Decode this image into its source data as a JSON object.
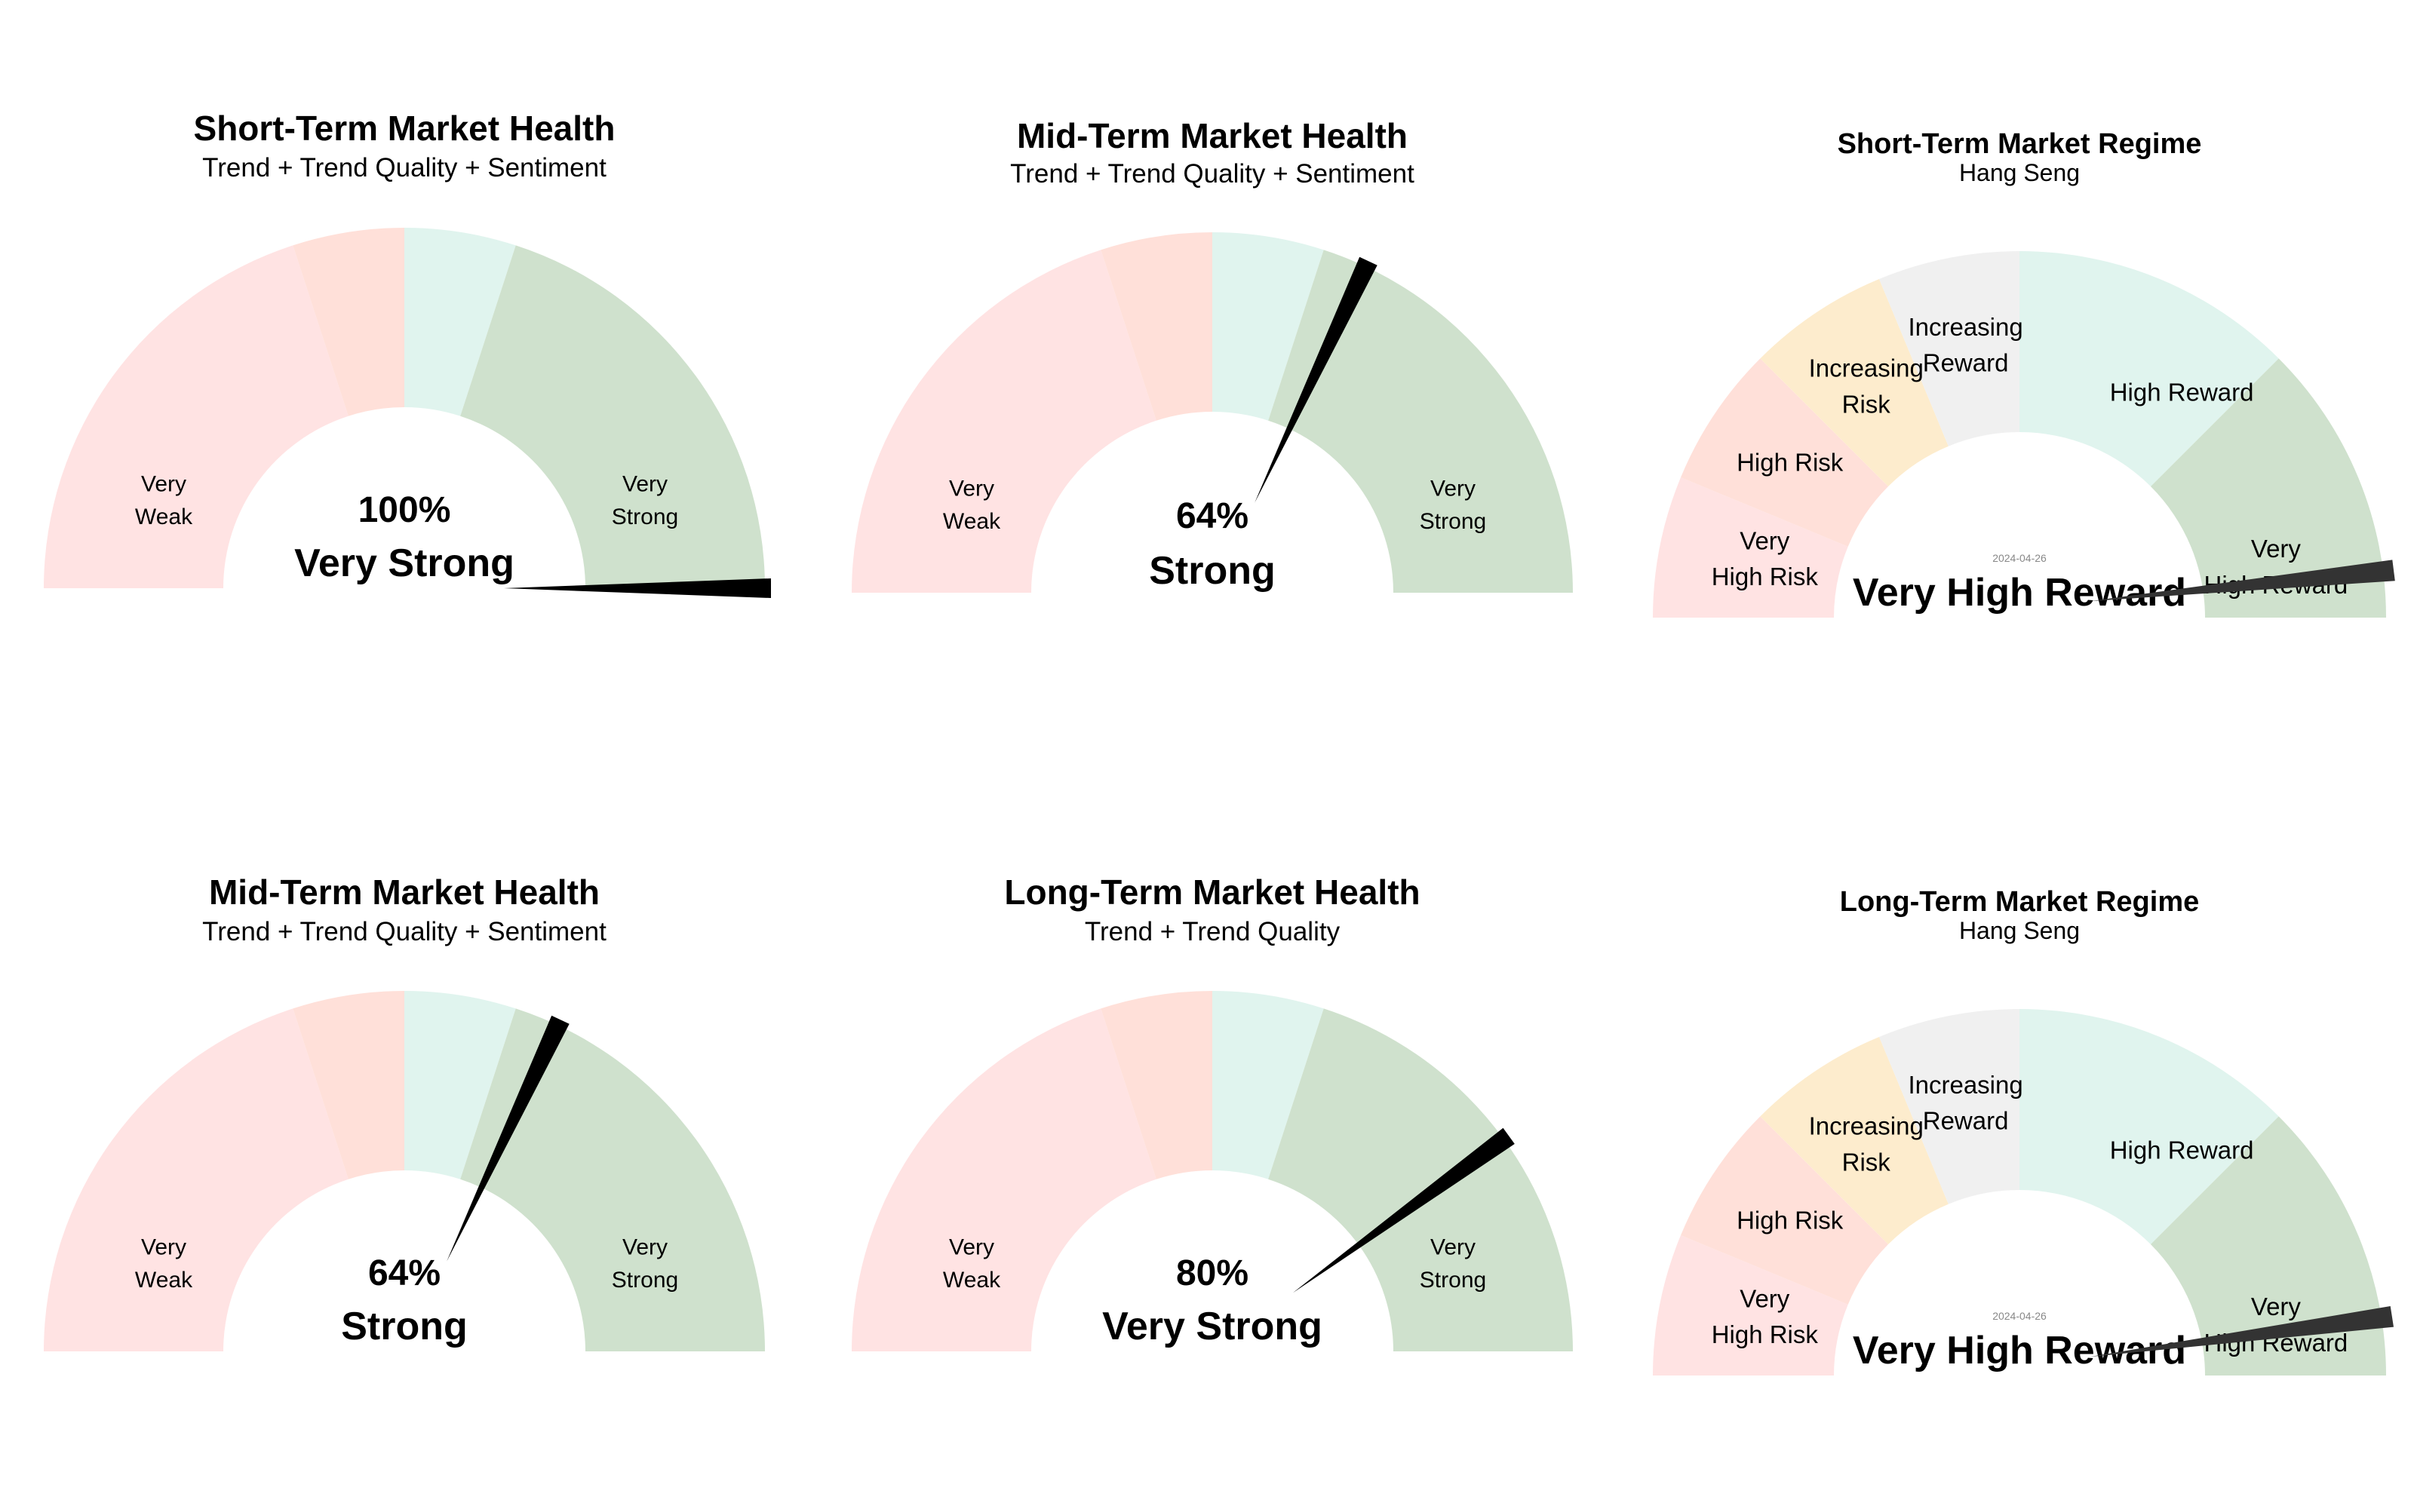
{
  "colors": {
    "very_weak": "#ffe3e3",
    "weak": "#ffe0d9",
    "strong": "#e0f4ee",
    "very_strong": "#cfe1cd",
    "increasing_risk": "#fdeccd",
    "increasing_reward": "#f0f0f0",
    "needle": "#000000",
    "regime_needle": "#333333",
    "text": "#000000",
    "date_text": "#888888"
  },
  "chart_data": [
    {
      "type": "gauge",
      "title": "Short-Term Market Health",
      "subtitle": "Trend + Trend Quality + Sentiment",
      "value_pct": 100,
      "value_label": "100%",
      "state_label": "Very Strong",
      "segments": [
        {
          "start": 0,
          "end": 40,
          "color_key": "very_weak",
          "label_lines": [
            "Very",
            "Weak"
          ]
        },
        {
          "start": 40,
          "end": 50,
          "color_key": "weak",
          "label_lines": []
        },
        {
          "start": 50,
          "end": 60,
          "color_key": "strong",
          "label_lines": []
        },
        {
          "start": 60,
          "end": 100,
          "color_key": "very_strong",
          "label_lines": [
            "Very",
            "Strong"
          ]
        }
      ]
    },
    {
      "type": "gauge",
      "title": "Mid-Term Market Health",
      "subtitle": "Trend + Trend Quality + Sentiment",
      "value_pct": 64,
      "value_label": "64%",
      "state_label": "Strong",
      "segments": [
        {
          "start": 0,
          "end": 40,
          "color_key": "very_weak",
          "label_lines": [
            "Very",
            "Weak"
          ]
        },
        {
          "start": 40,
          "end": 50,
          "color_key": "weak",
          "label_lines": []
        },
        {
          "start": 50,
          "end": 60,
          "color_key": "strong",
          "label_lines": []
        },
        {
          "start": 60,
          "end": 100,
          "color_key": "very_strong",
          "label_lines": [
            "Very",
            "Strong"
          ]
        }
      ]
    },
    {
      "type": "regime_gauge",
      "title": "Short-Term Market Regime",
      "subtitle": "Hang Seng",
      "date": "2024-04-26",
      "value_pct": 96,
      "state_label": "Very High Reward",
      "segments": [
        {
          "start": 0,
          "end": 12.5,
          "color_key": "very_weak",
          "label_lines": [
            "Very",
            "High Risk"
          ]
        },
        {
          "start": 12.5,
          "end": 25,
          "color_key": "weak",
          "label_lines": [
            "High Risk"
          ]
        },
        {
          "start": 25,
          "end": 37.5,
          "color_key": "increasing_risk",
          "label_lines": [
            "Increasing",
            "Risk"
          ]
        },
        {
          "start": 37.5,
          "end": 50,
          "color_key": "increasing_reward",
          "label_lines": [
            "Increasing",
            "Reward"
          ]
        },
        {
          "start": 50,
          "end": 75,
          "color_key": "strong",
          "label_lines": [
            "High Reward"
          ]
        },
        {
          "start": 75,
          "end": 100,
          "color_key": "very_strong",
          "label_lines": [
            "Very",
            "High Reward"
          ]
        }
      ]
    },
    {
      "type": "gauge",
      "title": "Mid-Term Market Health",
      "subtitle": "Trend + Trend Quality + Sentiment",
      "value_pct": 64,
      "value_label": "64%",
      "state_label": "Strong",
      "segments": [
        {
          "start": 0,
          "end": 40,
          "color_key": "very_weak",
          "label_lines": [
            "Very",
            "Weak"
          ]
        },
        {
          "start": 40,
          "end": 50,
          "color_key": "weak",
          "label_lines": []
        },
        {
          "start": 50,
          "end": 60,
          "color_key": "strong",
          "label_lines": []
        },
        {
          "start": 60,
          "end": 100,
          "color_key": "very_strong",
          "label_lines": [
            "Very",
            "Strong"
          ]
        }
      ]
    },
    {
      "type": "gauge",
      "title": "Long-Term Market Health",
      "subtitle": "Trend + Trend Quality",
      "value_pct": 80,
      "value_label": "80%",
      "state_label": "Very Strong",
      "segments": [
        {
          "start": 0,
          "end": 40,
          "color_key": "very_weak",
          "label_lines": [
            "Very",
            "Weak"
          ]
        },
        {
          "start": 40,
          "end": 50,
          "color_key": "weak",
          "label_lines": []
        },
        {
          "start": 50,
          "end": 60,
          "color_key": "strong",
          "label_lines": []
        },
        {
          "start": 60,
          "end": 80,
          "color_key": "very_strong",
          "label_lines": []
        },
        {
          "start": 80,
          "end": 100,
          "color_key": "very_strong",
          "label_lines": [
            "Very",
            "Strong"
          ]
        }
      ]
    },
    {
      "type": "regime_gauge",
      "title": "Long-Term Market Regime",
      "subtitle": "Hang Seng",
      "date": "2024-04-26",
      "value_pct": 95,
      "state_label": "Very High Reward",
      "segments": [
        {
          "start": 0,
          "end": 12.5,
          "color_key": "very_weak",
          "label_lines": [
            "Very",
            "High Risk"
          ]
        },
        {
          "start": 12.5,
          "end": 25,
          "color_key": "weak",
          "label_lines": [
            "High Risk"
          ]
        },
        {
          "start": 25,
          "end": 37.5,
          "color_key": "increasing_risk",
          "label_lines": [
            "Increasing",
            "Risk"
          ]
        },
        {
          "start": 37.5,
          "end": 50,
          "color_key": "increasing_reward",
          "label_lines": [
            "Increasing",
            "Reward"
          ]
        },
        {
          "start": 50,
          "end": 75,
          "color_key": "strong",
          "label_lines": [
            "High Reward"
          ]
        },
        {
          "start": 75,
          "end": 100,
          "color_key": "very_strong",
          "label_lines": [
            "Very",
            "High Reward"
          ]
        }
      ]
    }
  ]
}
